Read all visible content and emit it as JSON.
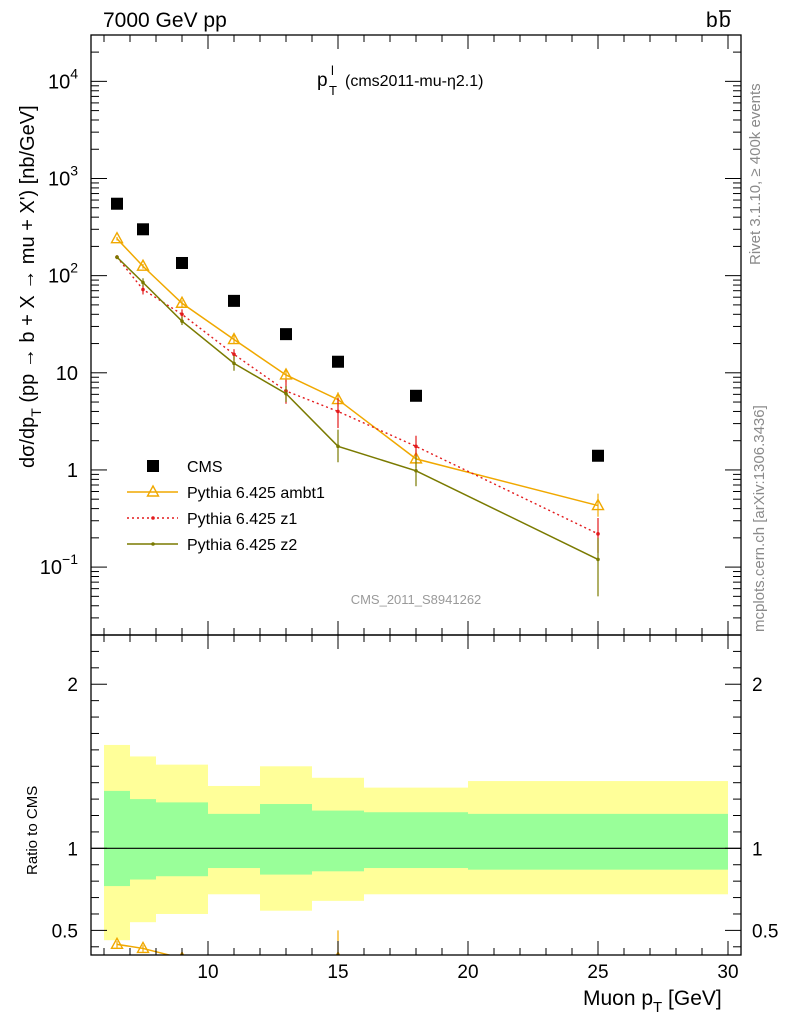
{
  "header": {
    "left": "7000 GeV pp",
    "right_base": "b",
    "right_bar": "b"
  },
  "subtitle": {
    "main": "p",
    "sup": "l",
    "sub": "T",
    "rest": "(cms2011-mu-η2.1)"
  },
  "side_labels": {
    "rivet": "Rivet 3.1.10, ≥ 400k events",
    "mcplots": "mcplots.cern.ch [arXiv:1306.3436]"
  },
  "analysis_id": "CMS_2011_S8941262",
  "main_ylabel": "dσ/dp_T (pp → b + X → mu + X') [nb/GeV]",
  "main_ylabel_parts": {
    "a": "dσ/dp",
    "sub": "T",
    "b": " (pp → b + X → mu + X') [nb/GeV]"
  },
  "ratio_ylabel": "Ratio to CMS",
  "xlabel": {
    "main": "Muon p",
    "sub": "T",
    "rest": " [GeV]"
  },
  "colors": {
    "data": "#000000",
    "ambt1": "#f0a800",
    "z1": "#e31a1c",
    "z2": "#7a7a00",
    "band_inner": "#99ff99",
    "band_outer": "#ffff99"
  },
  "chart_data": [
    {
      "type": "scatter",
      "panel": "main",
      "xlim": [
        5.5,
        30.5
      ],
      "ylim": [
        0.02,
        30000
      ],
      "log_y": true,
      "y_ticks": [
        {
          "value": 0.1,
          "base": "10",
          "exp": "−1"
        },
        {
          "value": 1,
          "base": "1",
          "exp": ""
        },
        {
          "value": 10,
          "base": "10",
          "exp": ""
        },
        {
          "value": 100,
          "base": "10",
          "exp": "2"
        },
        {
          "value": 1000,
          "base": "10",
          "exp": "3"
        },
        {
          "value": 10000,
          "base": "10",
          "exp": "4"
        }
      ],
      "legend_position": "bottom-left",
      "series": [
        {
          "name": "CMS",
          "style": "square",
          "x": [
            6.5,
            7.5,
            9,
            11,
            13,
            15,
            18,
            25
          ],
          "y": [
            550,
            300,
            135,
            55,
            25,
            13,
            5.8,
            1.4
          ]
        },
        {
          "name": "Pythia 6.425 ambt1",
          "style": "triangle-line",
          "x": [
            6.5,
            7.5,
            9,
            11,
            13,
            15,
            18,
            25
          ],
          "y": [
            240,
            125,
            52,
            22,
            9.5,
            5.3,
            1.3,
            0.43
          ],
          "err": [
            [
              230,
              250
            ],
            [
              118,
              132
            ],
            [
              48,
              56
            ],
            [
              20,
              24.5
            ],
            [
              8,
              11
            ],
            [
              4.5,
              6.3
            ],
            [
              1.05,
              1.6
            ],
            [
              0.33,
              0.57
            ]
          ]
        },
        {
          "name": "Pythia 6.425 z1",
          "style": "dotted",
          "x": [
            6.5,
            7.5,
            9,
            11,
            13,
            15,
            18,
            25
          ],
          "y": [
            155,
            72,
            40,
            15.5,
            6.5,
            4.0,
            1.75,
            0.22
          ],
          "err": [
            [
              148,
              163
            ],
            [
              64,
              80
            ],
            [
              35,
              45
            ],
            [
              13.5,
              17.5
            ],
            [
              4.8,
              8.5
            ],
            [
              2.7,
              5.5
            ],
            [
              1.35,
              2.25
            ],
            [
              0.14,
              0.32
            ]
          ]
        },
        {
          "name": "Pythia 6.425 z2",
          "style": "line",
          "x": [
            6.5,
            7.5,
            9,
            11,
            13,
            15,
            18,
            25
          ],
          "y": [
            155,
            85,
            34,
            12.5,
            6.1,
            1.75,
            0.98,
            0.12
          ],
          "err": [
            [
              148,
              162
            ],
            [
              77,
              94
            ],
            [
              31,
              38
            ],
            [
              10.5,
              15
            ],
            [
              5.0,
              7.3
            ],
            [
              1.2,
              2.6
            ],
            [
              0.68,
              1.4
            ],
            [
              0.05,
              0.2
            ]
          ]
        }
      ]
    },
    {
      "type": "area",
      "panel": "ratio",
      "xlim": [
        5.5,
        30.5
      ],
      "ylim": [
        0.35,
        2.3
      ],
      "y_ticks": [
        0.5,
        1,
        2
      ],
      "x_ticks": [
        10,
        15,
        20,
        25,
        30
      ],
      "bins": [
        [
          6,
          7
        ],
        [
          7,
          8
        ],
        [
          8,
          10
        ],
        [
          10,
          12
        ],
        [
          12,
          14
        ],
        [
          14,
          16
        ],
        [
          16,
          20
        ],
        [
          20,
          30
        ]
      ],
      "band_outer": [
        [
          0.44,
          1.63
        ],
        [
          0.55,
          1.56
        ],
        [
          0.6,
          1.51
        ],
        [
          0.72,
          1.38
        ],
        [
          0.62,
          1.5
        ],
        [
          0.68,
          1.43
        ],
        [
          0.72,
          1.37
        ],
        [
          0.72,
          1.41
        ]
      ],
      "band_inner": [
        [
          0.77,
          1.35
        ],
        [
          0.81,
          1.3
        ],
        [
          0.83,
          1.28
        ],
        [
          0.88,
          1.21
        ],
        [
          0.84,
          1.27
        ],
        [
          0.86,
          1.23
        ],
        [
          0.88,
          1.22
        ],
        [
          0.87,
          1.21
        ]
      ],
      "series": [
        {
          "name": "Pythia 6.425 ambt1",
          "x": [
            6.5,
            7.5,
            9,
            15
          ],
          "y": [
            0.415,
            0.39,
            0.33,
            0.33
          ],
          "err": [
            [
              0.395,
              0.435
            ],
            [
              0.37,
              0.41
            ],
            null,
            [
              0.31,
              0.5
            ]
          ]
        }
      ]
    }
  ]
}
